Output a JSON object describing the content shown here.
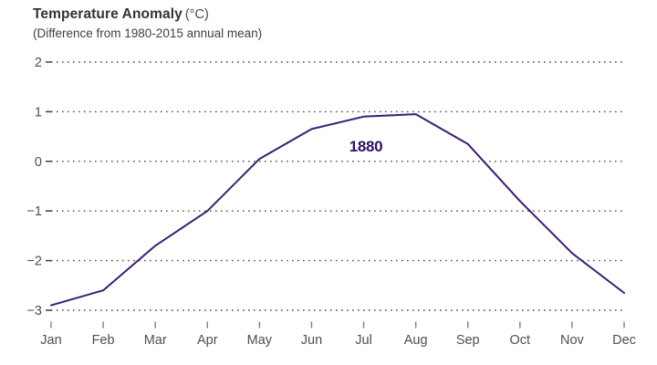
{
  "header": {
    "title": "Temperature Anomaly",
    "unit": "(°C)",
    "subtitle": "(Difference from 1980-2015 annual mean)"
  },
  "chart_data": {
    "type": "line",
    "title": "Temperature Anomaly (°C)",
    "subtitle": "(Difference from 1980-2015 annual mean)",
    "categories": [
      "Jan",
      "Feb",
      "Mar",
      "Apr",
      "May",
      "Jun",
      "Jul",
      "Aug",
      "Sep",
      "Oct",
      "Nov",
      "Dec"
    ],
    "series": [
      {
        "name": "1880",
        "values": [
          -2.9,
          -2.6,
          -1.7,
          -1.0,
          0.05,
          0.65,
          0.9,
          0.95,
          0.35,
          -0.8,
          -1.85,
          -2.65
        ]
      }
    ],
    "xlabel": "",
    "ylabel": "Temperature Anomaly (°C)",
    "yticks": [
      2,
      1,
      0,
      -1,
      -2,
      -3
    ],
    "ylim": [
      -3.3,
      2.2
    ],
    "grid": "horizontal-dotted",
    "legend_position": "inline-label-below-peak",
    "series_label": "1880"
  },
  "colors": {
    "line": "#3b1d72",
    "series_label": "#2e1164",
    "grid_dots": "#4a4a4a",
    "axis_text": "#4f4f4f",
    "tick": "#7f7f7f",
    "title_text": "#333333",
    "background": "#ffffff"
  }
}
